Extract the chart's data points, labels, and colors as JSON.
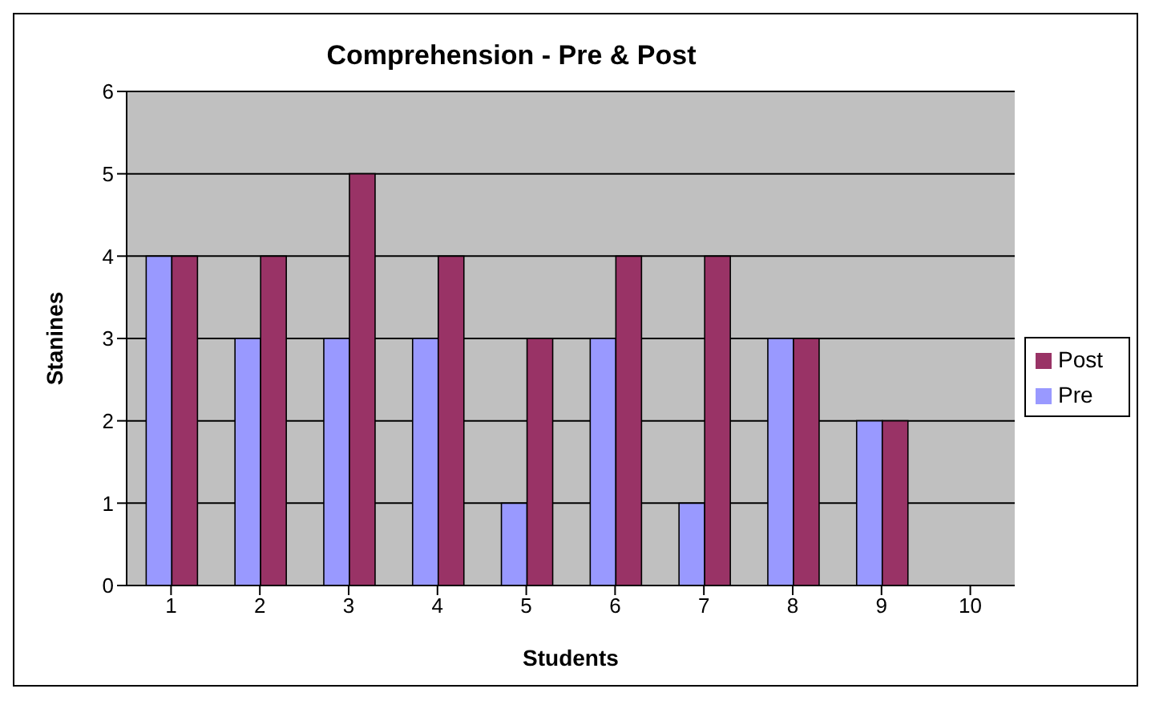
{
  "chart_data": {
    "type": "bar",
    "title": "Comprehension - Pre & Post",
    "xlabel": "Students",
    "ylabel": "Stanines",
    "categories": [
      "1",
      "2",
      "3",
      "4",
      "5",
      "6",
      "7",
      "8",
      "9",
      "10"
    ],
    "series": [
      {
        "name": "Pre",
        "color": "#9999ff",
        "values": [
          4,
          3,
          3,
          3,
          1,
          3,
          1,
          3,
          2,
          null
        ]
      },
      {
        "name": "Post",
        "color": "#993366",
        "values": [
          4,
          4,
          5,
          4,
          3,
          4,
          4,
          3,
          2,
          null
        ]
      }
    ],
    "ylim": [
      0,
      6
    ],
    "yticks": [
      0,
      1,
      2,
      3,
      4,
      5,
      6
    ],
    "grid": "y",
    "legend": "right"
  }
}
